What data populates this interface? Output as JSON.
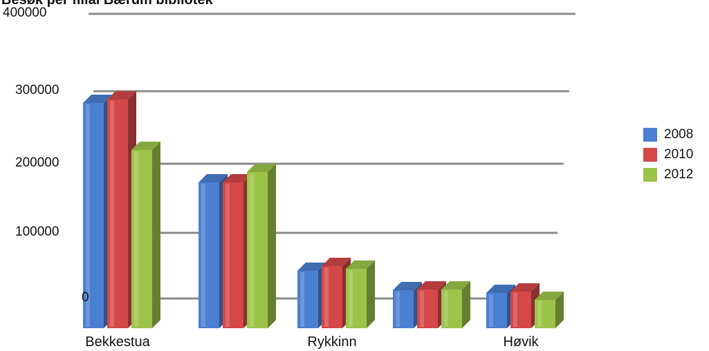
{
  "chart_data": {
    "type": "bar",
    "title": "Besøk per filial Bærum bibliotek",
    "xlabel": "",
    "ylabel": "",
    "ylim": [
      0,
      400000
    ],
    "yticks": [
      "400000",
      "300000",
      "200000",
      "100000",
      "0"
    ],
    "categories": [
      "Bekkestua",
      "",
      "Rykkinn",
      "",
      "Høvik"
    ],
    "series": [
      {
        "name": "2008",
        "color": "#4a7fd2",
        "values": [
          283000,
          168000,
          40000,
          12000,
          8000
        ]
      },
      {
        "name": "2010",
        "color": "#d44848",
        "values": [
          288000,
          168000,
          47000,
          13000,
          10000
        ]
      },
      {
        "name": "2012",
        "color": "#9cc44a",
        "values": [
          215000,
          183000,
          43000,
          13000,
          -2000
        ]
      }
    ],
    "legend": "right",
    "grid": true
  }
}
